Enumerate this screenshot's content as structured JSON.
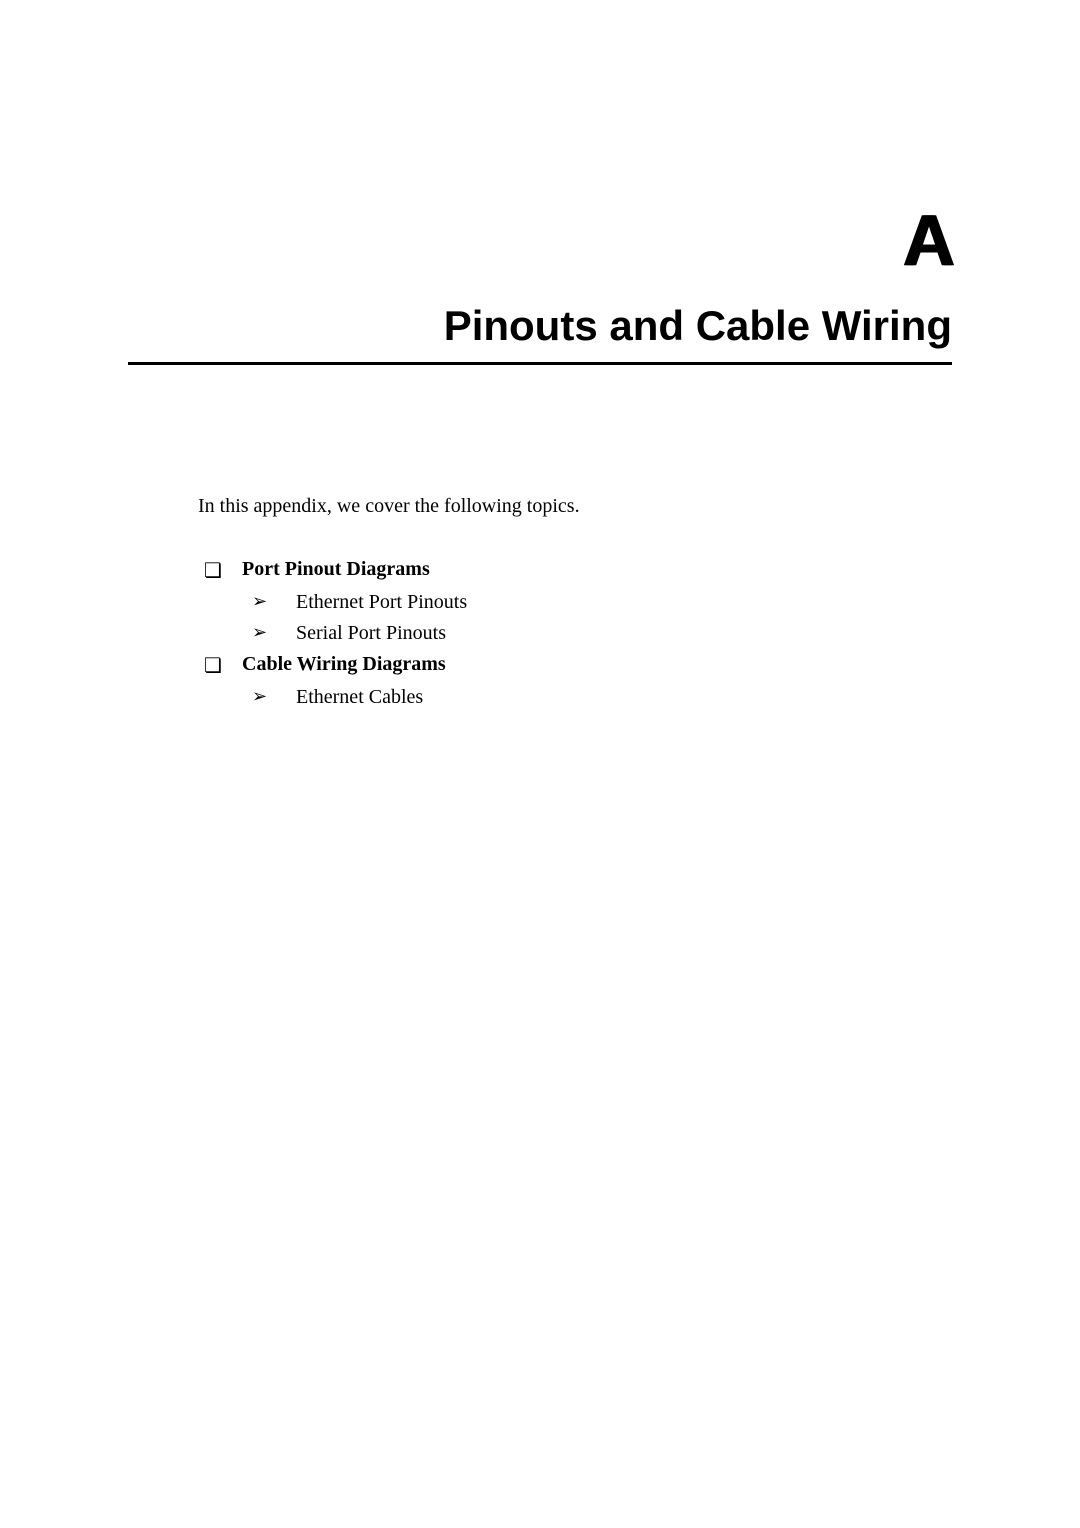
{
  "appendix_letter": "A",
  "page_title": "Pinouts and Cable Wiring",
  "intro_text": "In this appendix, we cover the following topics.",
  "topics": [
    {
      "title": "Port Pinout Diagrams",
      "subtopics": [
        "Ethernet Port Pinouts",
        "Serial Port Pinouts"
      ]
    },
    {
      "title": "Cable Wiring Diagrams",
      "subtopics": [
        "Ethernet Cables"
      ]
    }
  ],
  "bullets": {
    "topic": "❏",
    "sub": "➢"
  },
  "styling": {
    "background_color": "#ffffff",
    "text_color": "#000000",
    "appendix_letter_fontsize": 72,
    "title_fontsize": 42,
    "body_fontsize": 20,
    "title_border_width": 3
  }
}
